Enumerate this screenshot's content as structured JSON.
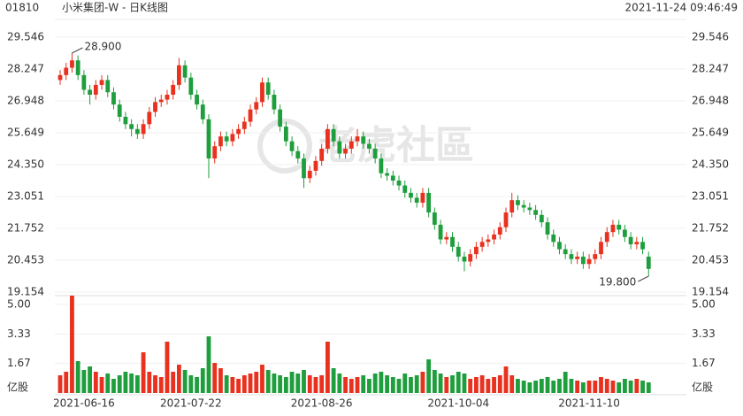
{
  "header": {
    "code": "01810",
    "name": "小米集团-W - 日K线图",
    "time": "2021-11-24 09:46:49"
  },
  "watermark": "老虎社區",
  "chart_data": [
    {
      "type": "candlestick",
      "categories": [
        null,
        null,
        null,
        null,
        "2021-06-16",
        null,
        null,
        null,
        null,
        null,
        null,
        null,
        null,
        null,
        null,
        null,
        null,
        null,
        null,
        null,
        null,
        null,
        "2021-07-22",
        null,
        null,
        null,
        null,
        null,
        null,
        null,
        null,
        null,
        null,
        null,
        null,
        null,
        null,
        null,
        null,
        null,
        null,
        null,
        null,
        null,
        "2021-08-26",
        null,
        null,
        null,
        null,
        null,
        null,
        null,
        null,
        null,
        null,
        null,
        null,
        null,
        null,
        null,
        null,
        null,
        null,
        null,
        null,
        null,
        null,
        "2021-10-04",
        null,
        null,
        null,
        null,
        null,
        null,
        null,
        null,
        null,
        null,
        null,
        null,
        null,
        null,
        null,
        null,
        null,
        null,
        null,
        null,
        null,
        "2021-11-10",
        null,
        null,
        null,
        null,
        null,
        null,
        null,
        null,
        null,
        null
      ],
      "open": [
        27.8,
        28.0,
        28.3,
        28.6,
        28.0,
        27.4,
        27.2,
        27.6,
        27.8,
        27.3,
        26.8,
        26.3,
        26.0,
        25.8,
        25.6,
        26.0,
        26.5,
        26.9,
        27.0,
        27.2,
        27.6,
        28.4,
        27.9,
        27.2,
        26.8,
        26.2,
        24.6,
        25.1,
        25.5,
        25.3,
        25.6,
        25.8,
        26.1,
        26.6,
        26.9,
        27.7,
        27.2,
        26.6,
        25.9,
        25.3,
        24.9,
        24.6,
        23.8,
        24.1,
        24.5,
        25.0,
        25.8,
        25.3,
        24.8,
        25.0,
        25.3,
        25.5,
        25.2,
        25.0,
        24.6,
        24.0,
        23.9,
        23.7,
        23.5,
        23.2,
        23.0,
        22.8,
        23.2,
        22.4,
        21.9,
        21.3,
        21.4,
        21.0,
        20.6,
        20.4,
        20.7,
        21.0,
        21.2,
        21.3,
        21.5,
        21.8,
        22.4,
        22.9,
        22.7,
        22.6,
        22.5,
        22.3,
        22.0,
        21.5,
        21.2,
        20.9,
        20.7,
        20.5,
        20.6,
        20.3,
        20.5,
        20.7,
        21.2,
        21.6,
        21.9,
        21.7,
        21.4,
        21.1,
        21.2,
        20.6
      ],
      "high": [
        28.2,
        28.5,
        28.9,
        28.8,
        28.2,
        27.6,
        27.8,
        28.0,
        28.0,
        27.5,
        27.0,
        26.5,
        26.2,
        26.0,
        26.2,
        26.7,
        27.1,
        27.2,
        27.4,
        27.8,
        28.7,
        28.6,
        28.1,
        27.4,
        27.0,
        26.4,
        25.3,
        25.7,
        25.7,
        25.8,
        26.0,
        26.3,
        26.8,
        27.1,
        27.9,
        27.9,
        27.4,
        26.8,
        26.1,
        25.5,
        25.1,
        24.8,
        24.3,
        24.7,
        25.2,
        26.0,
        26.0,
        25.5,
        25.2,
        25.5,
        25.8,
        25.7,
        25.4,
        25.2,
        24.8,
        24.2,
        24.1,
        23.9,
        23.7,
        23.4,
        23.2,
        23.4,
        23.4,
        22.6,
        22.1,
        21.6,
        21.6,
        21.2,
        20.8,
        20.9,
        21.2,
        21.4,
        21.5,
        21.7,
        22.0,
        22.6,
        23.2,
        23.1,
        22.9,
        22.8,
        22.7,
        22.5,
        22.2,
        21.7,
        21.4,
        21.1,
        20.9,
        20.8,
        20.8,
        20.7,
        20.9,
        21.4,
        21.8,
        22.1,
        22.1,
        21.9,
        21.6,
        21.4,
        21.4,
        20.8
      ],
      "low": [
        27.6,
        27.8,
        28.1,
        27.8,
        27.2,
        26.8,
        27.0,
        27.4,
        27.1,
        26.6,
        26.1,
        25.8,
        25.5,
        25.4,
        25.4,
        25.8,
        26.3,
        26.7,
        26.8,
        27.0,
        27.4,
        27.7,
        27.0,
        26.6,
        26.0,
        23.8,
        24.4,
        24.9,
        25.1,
        25.1,
        25.4,
        25.6,
        25.9,
        26.4,
        26.7,
        27.0,
        26.4,
        25.7,
        25.1,
        24.7,
        24.4,
        23.4,
        23.6,
        23.9,
        24.3,
        24.8,
        25.1,
        24.6,
        24.6,
        24.8,
        25.1,
        25.0,
        24.8,
        24.4,
        23.8,
        23.7,
        23.5,
        23.3,
        23.0,
        22.8,
        22.6,
        22.6,
        22.2,
        21.7,
        21.1,
        21.1,
        20.8,
        20.4,
        20.0,
        20.2,
        20.5,
        20.8,
        21.0,
        21.1,
        21.3,
        21.6,
        22.2,
        22.5,
        22.4,
        22.3,
        22.1,
        21.8,
        21.3,
        21.0,
        20.7,
        20.5,
        20.3,
        20.3,
        20.1,
        20.1,
        20.3,
        20.5,
        21.0,
        21.4,
        21.5,
        21.2,
        20.9,
        20.9,
        20.7,
        19.8
      ],
      "close": [
        28.0,
        28.3,
        28.6,
        28.0,
        27.4,
        27.2,
        27.6,
        27.8,
        27.3,
        26.8,
        26.3,
        26.0,
        25.8,
        25.6,
        26.0,
        26.5,
        26.9,
        27.0,
        27.2,
        27.6,
        28.4,
        27.9,
        27.2,
        26.8,
        26.2,
        24.6,
        25.1,
        25.5,
        25.3,
        25.6,
        25.8,
        26.1,
        26.6,
        26.9,
        27.7,
        27.2,
        26.6,
        25.9,
        25.3,
        24.9,
        24.6,
        23.8,
        24.1,
        24.5,
        25.0,
        25.8,
        25.3,
        24.8,
        25.0,
        25.3,
        25.5,
        25.2,
        25.0,
        24.6,
        24.0,
        23.9,
        23.7,
        23.5,
        23.2,
        23.0,
        22.8,
        23.2,
        22.4,
        21.9,
        21.3,
        21.4,
        21.0,
        20.6,
        20.4,
        20.7,
        21.0,
        21.2,
        21.3,
        21.5,
        21.8,
        22.4,
        22.9,
        22.7,
        22.6,
        22.5,
        22.3,
        22.0,
        21.5,
        21.2,
        20.9,
        20.7,
        20.5,
        20.6,
        20.3,
        20.5,
        20.7,
        21.2,
        21.6,
        21.9,
        21.7,
        21.4,
        21.1,
        21.2,
        20.9,
        20.1
      ],
      "up_color": "#e8311e",
      "down_color": "#1e9e3c",
      "ylim": [
        19.154,
        29.546
      ],
      "yticks": [
        29.546,
        28.247,
        26.948,
        25.649,
        {
          "value": 24.35,
          "label": "24.350"
        },
        23.051,
        21.752,
        20.453,
        19.154
      ],
      "annotations": [
        {
          "value": 28.9,
          "label": "28.900"
        },
        {
          "value": 19.8,
          "label": "19.800"
        }
      ]
    },
    {
      "type": "bar",
      "unit": "亿股",
      "values": [
        1.0,
        1.2,
        5.5,
        1.8,
        1.3,
        1.5,
        1.2,
        0.9,
        1.1,
        0.8,
        1.0,
        1.2,
        1.1,
        1.0,
        2.3,
        1.2,
        1.0,
        0.9,
        2.9,
        1.2,
        1.6,
        1.3,
        1.0,
        0.9,
        1.4,
        3.2,
        1.7,
        1.4,
        1.0,
        0.9,
        0.8,
        1.0,
        1.1,
        1.2,
        1.6,
        1.3,
        1.1,
        1.0,
        0.9,
        1.2,
        1.1,
        1.3,
        1.0,
        0.9,
        1.0,
        2.9,
        1.4,
        1.1,
        0.9,
        0.8,
        0.9,
        1.0,
        0.8,
        1.1,
        1.2,
        1.0,
        0.9,
        0.8,
        1.1,
        0.9,
        1.0,
        1.2,
        1.9,
        1.3,
        1.1,
        0.9,
        1.0,
        1.2,
        1.1,
        0.8,
        0.9,
        1.0,
        0.8,
        0.9,
        1.0,
        1.5,
        1.0,
        0.8,
        0.7,
        0.6,
        0.7,
        0.8,
        0.9,
        0.7,
        0.8,
        1.2,
        0.8,
        0.7,
        0.6,
        0.7,
        0.7,
        0.9,
        0.8,
        0.7,
        0.6,
        0.8,
        0.7,
        0.8,
        0.7,
        0.6
      ],
      "ylim": [
        0,
        5.3
      ],
      "yticks": [
        {
          "value": 5,
          "label": "5.00"
        },
        3.33,
        1.67
      ]
    }
  ]
}
